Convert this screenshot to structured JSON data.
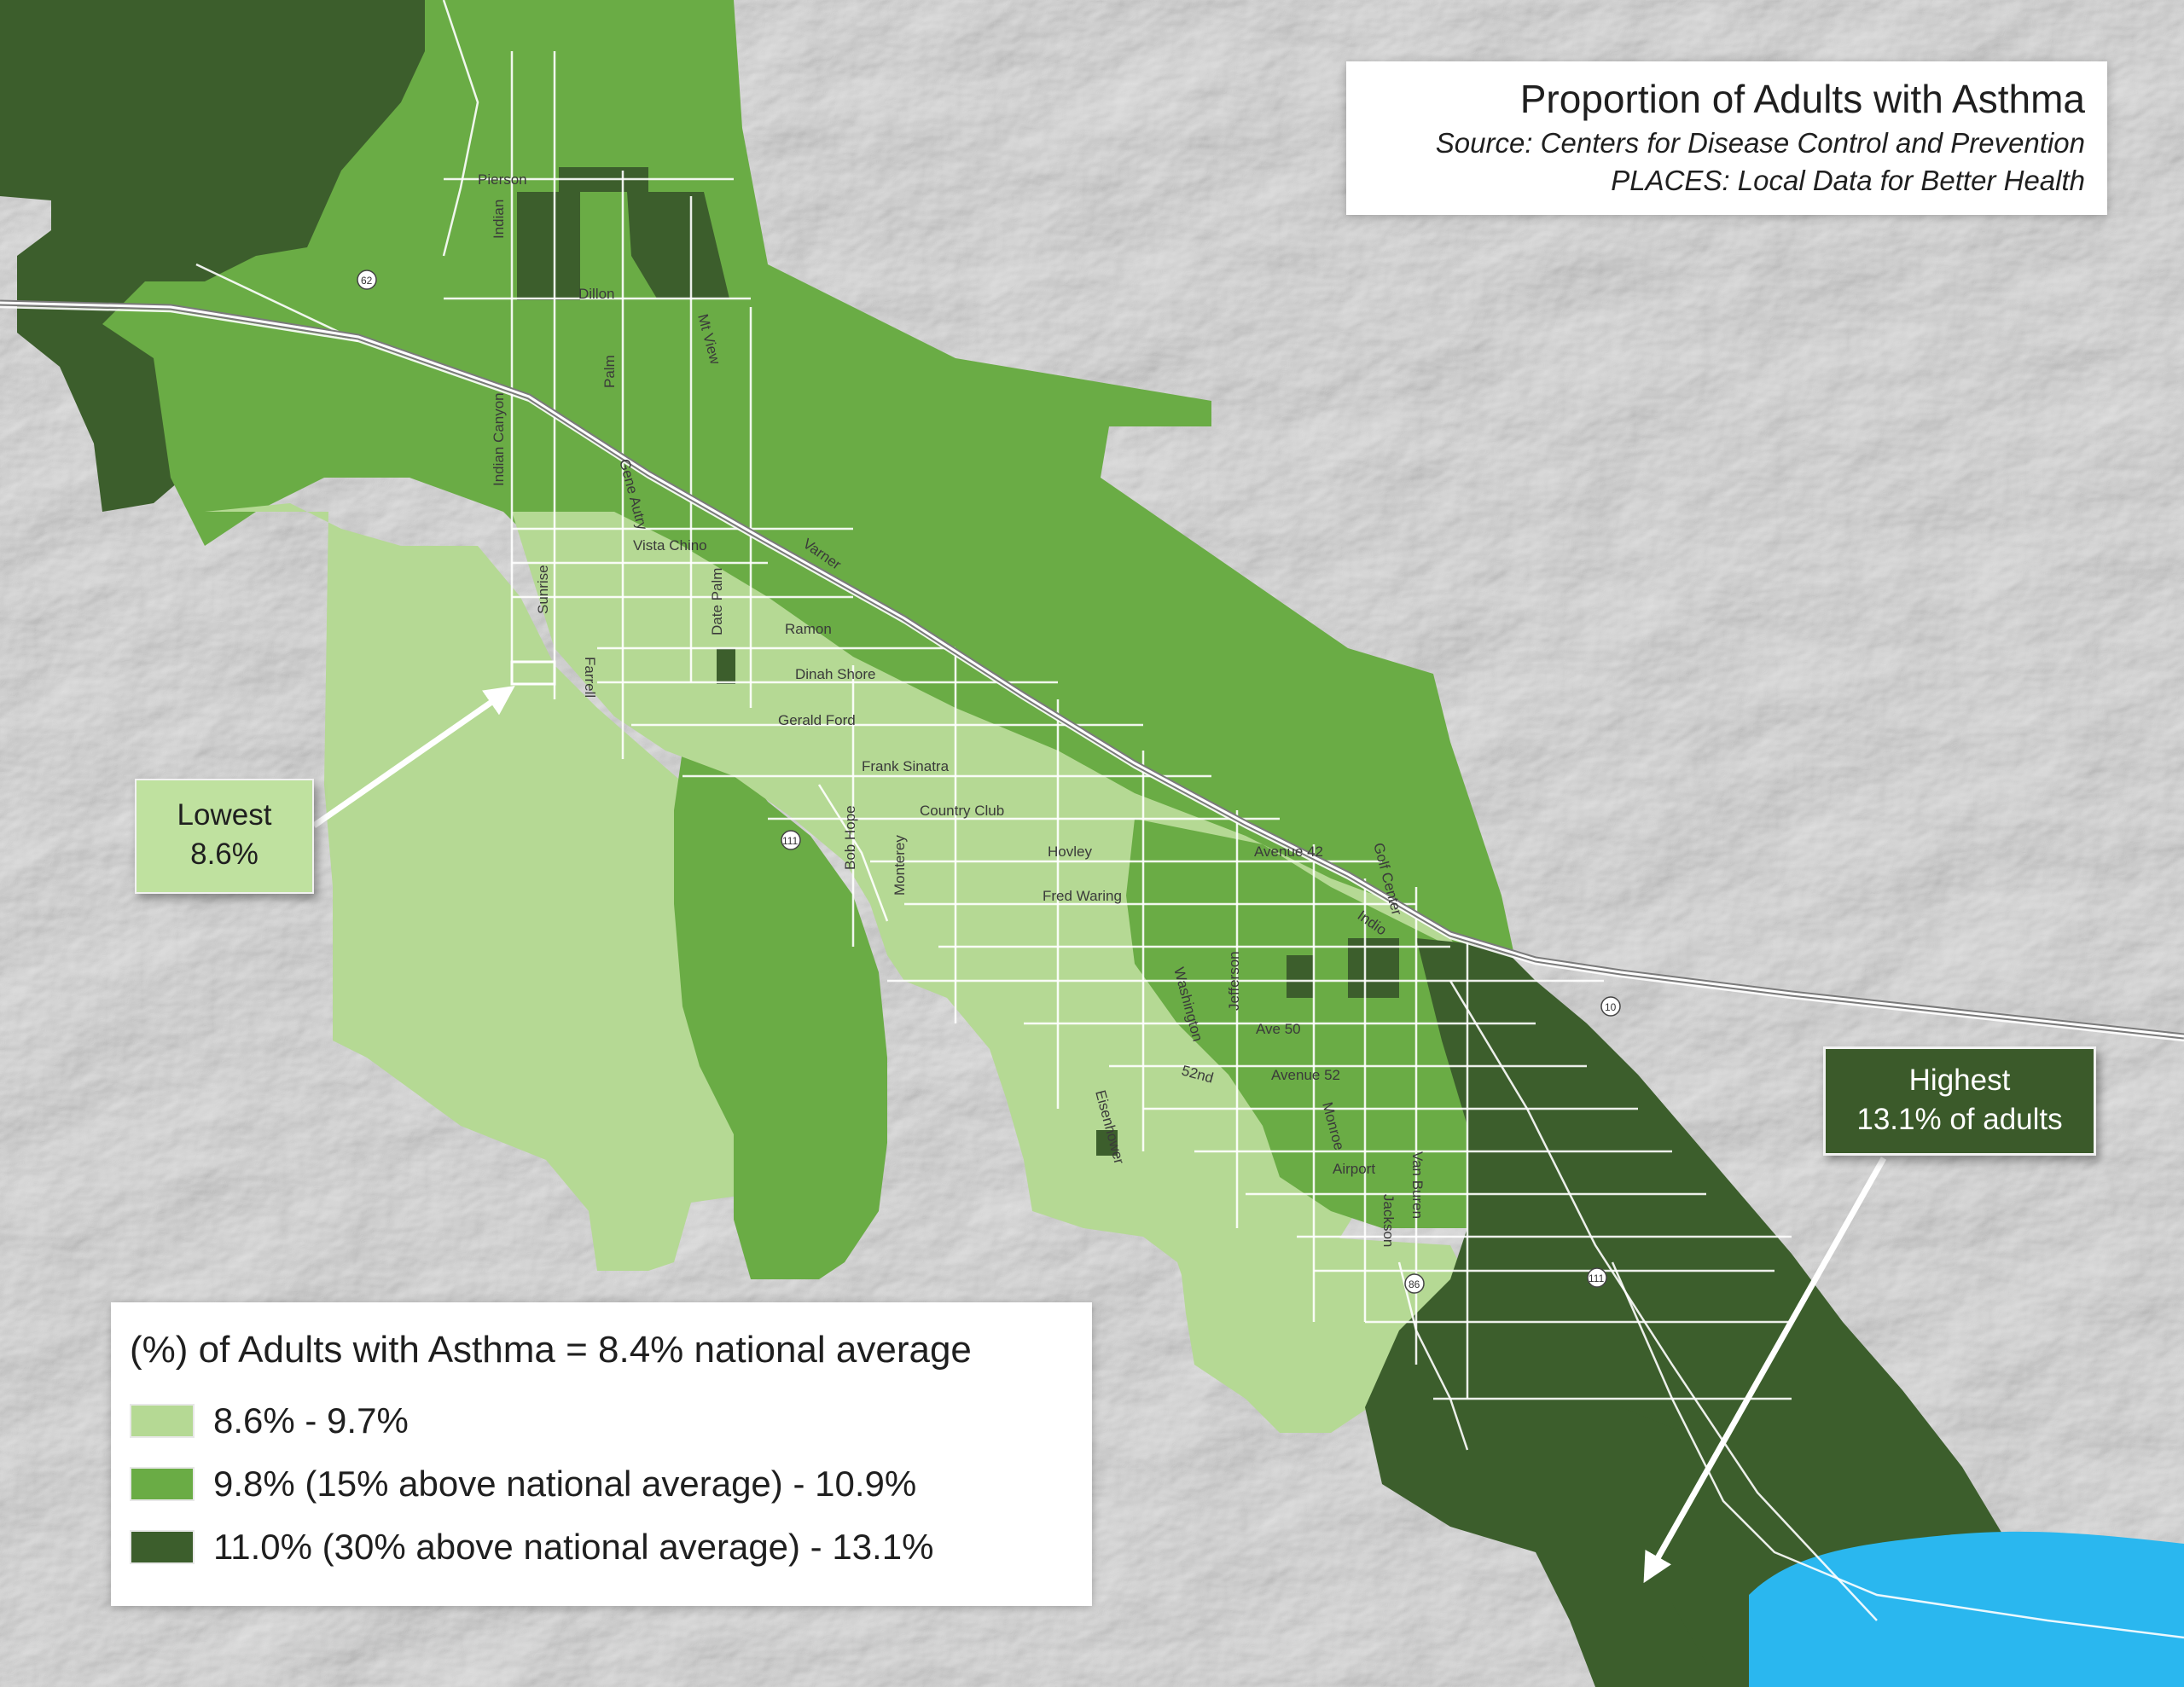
{
  "title": {
    "heading": "Proportion of Adults with Asthma",
    "source_line1": "Source: Centers for Disease Control and Prevention",
    "source_line2": "PLACES: Local Data for Better Health"
  },
  "callouts": {
    "lowest_label": "Lowest",
    "lowest_value": "8.6%",
    "highest_label": "Highest",
    "highest_value": "13.1% of adults"
  },
  "legend": {
    "title": "(%) of Adults with Asthma = 8.4% national average",
    "classes": [
      {
        "label": "8.6% - 9.7%",
        "color": "#b5d994"
      },
      {
        "label": "9.8% (15% above national average) - 10.9%",
        "color": "#6aac45"
      },
      {
        "label": "11.0% (30% above national average) - 13.1%",
        "color": "#3c5e2c"
      }
    ]
  },
  "colors": {
    "low": "#b5d994",
    "mid": "#6aac45",
    "high": "#3c5e2c",
    "water": "#2ab7ef",
    "terrain": "#d2d2d2"
  },
  "road_labels": [
    "Pierson",
    "Indian",
    "Dillon",
    "Palm",
    "Mt View",
    "Indian Canyon",
    "Gene Autry",
    "Vista Chino",
    "Varner",
    "Sunrise",
    "Date Palm",
    "Ramon",
    "Dinah Shore",
    "Farrell",
    "Gerald Ford",
    "Frank Sinatra",
    "Bob Hope",
    "Country Club",
    "Monterey",
    "Hovley",
    "Avenue 42",
    "Golf Center",
    "Fred Waring",
    "Indio",
    "Washington",
    "Jefferson",
    "Ave 50",
    "52nd",
    "Avenue 52",
    "Eisenhower",
    "Monroe",
    "Airport",
    "Jackson",
    "Van Buren"
  ],
  "highway_shields": [
    "62",
    "111",
    "10",
    "86",
    "111"
  ]
}
